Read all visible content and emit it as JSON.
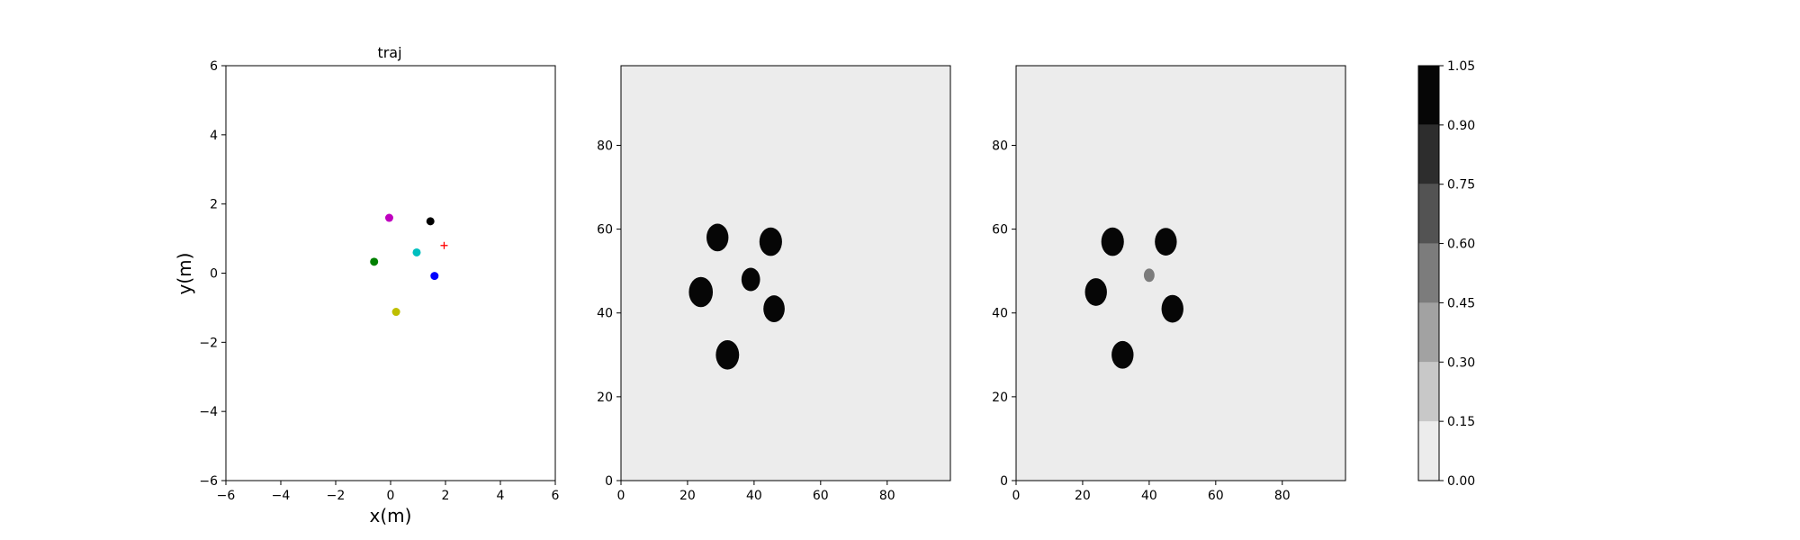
{
  "chart_data": [
    {
      "type": "scatter",
      "title": "traj",
      "xlabel": "x(m)",
      "ylabel": "y(m)",
      "xlim": [
        -6,
        6
      ],
      "ylim": [
        -6,
        6
      ],
      "xticks": [
        -6,
        -4,
        -2,
        0,
        2,
        4,
        6
      ],
      "yticks": [
        -6,
        -4,
        -2,
        0,
        2,
        4,
        6
      ],
      "xtick_labels": [
        "−6",
        "−4",
        "−2",
        "0",
        "2",
        "4",
        "6"
      ],
      "ytick_labels": [
        "−6",
        "−4",
        "−2",
        "0",
        "2",
        "4",
        "6"
      ],
      "grid": false,
      "points": [
        {
          "x": -0.6,
          "y": 0.33,
          "color": "#008000",
          "marker": "circle"
        },
        {
          "x": -0.05,
          "y": 1.6,
          "color": "#bf00bf",
          "marker": "circle"
        },
        {
          "x": 1.45,
          "y": 1.5,
          "color": "#000000",
          "marker": "circle"
        },
        {
          "x": 0.95,
          "y": 0.6,
          "color": "#00bfbf",
          "marker": "circle"
        },
        {
          "x": 1.6,
          "y": -0.08,
          "color": "#0000ff",
          "marker": "circle"
        },
        {
          "x": 0.2,
          "y": -1.12,
          "color": "#bfbf00",
          "marker": "circle"
        },
        {
          "x": 1.95,
          "y": 0.8,
          "color": "#ff0000",
          "marker": "plus"
        }
      ]
    },
    {
      "type": "heatmap",
      "title": "",
      "xlim": [
        0,
        99
      ],
      "ylim": [
        0,
        99
      ],
      "xticks": [
        0,
        20,
        40,
        60,
        80
      ],
      "yticks": [
        0,
        20,
        40,
        60,
        80
      ],
      "background_level": 0.0,
      "blobs": [
        {
          "x": 29,
          "y": 58,
          "r": 3.3,
          "level": 1.0
        },
        {
          "x": 45,
          "y": 57,
          "r": 3.4,
          "level": 1.0
        },
        {
          "x": 24,
          "y": 45,
          "r": 3.6,
          "level": 1.0
        },
        {
          "x": 39,
          "y": 48,
          "r": 2.8,
          "level": 1.0
        },
        {
          "x": 46,
          "y": 41,
          "r": 3.2,
          "level": 1.0
        },
        {
          "x": 32,
          "y": 30,
          "r": 3.5,
          "level": 1.0
        }
      ]
    },
    {
      "type": "heatmap",
      "title": "",
      "xlim": [
        0,
        99
      ],
      "ylim": [
        0,
        99
      ],
      "xticks": [
        0,
        20,
        40,
        60,
        80
      ],
      "yticks": [
        0,
        20,
        40,
        60,
        80
      ],
      "background_level": 0.0,
      "blobs": [
        {
          "x": 29,
          "y": 57,
          "r": 3.4,
          "level": 1.0
        },
        {
          "x": 45,
          "y": 57,
          "r": 3.3,
          "level": 1.0
        },
        {
          "x": 24,
          "y": 45,
          "r": 3.3,
          "level": 1.0
        },
        {
          "x": 40,
          "y": 49,
          "r": 1.6,
          "level": 0.45
        },
        {
          "x": 47,
          "y": 41,
          "r": 3.3,
          "level": 1.0
        },
        {
          "x": 32,
          "y": 30,
          "r": 3.3,
          "level": 1.0
        }
      ]
    }
  ],
  "colorbar": {
    "boundaries": [
      0.0,
      0.15,
      0.3,
      0.45,
      0.6,
      0.75,
      0.9,
      1.05
    ],
    "tick_labels": [
      "0.00",
      "0.15",
      "0.30",
      "0.45",
      "0.60",
      "0.75",
      "0.90",
      "1.05"
    ],
    "colors": [
      "#ececec",
      "#c8c8c8",
      "#a2a2a2",
      "#7c7c7c",
      "#535353",
      "#2d2d2d",
      "#060606"
    ]
  }
}
